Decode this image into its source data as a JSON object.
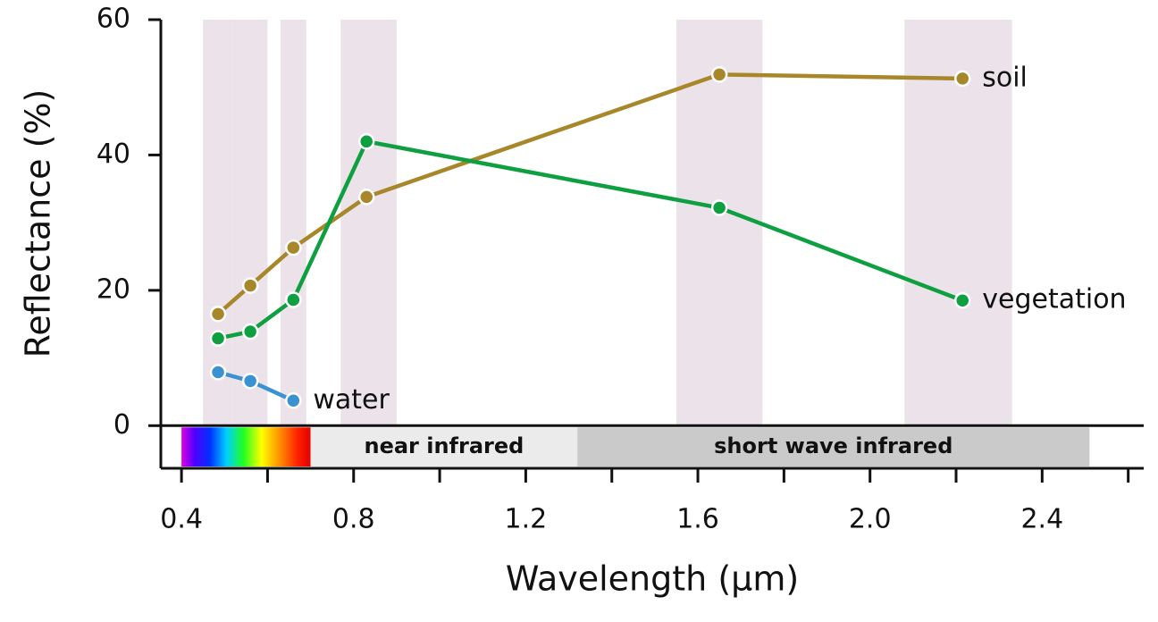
{
  "chart_data": {
    "type": "line",
    "xlabel": "Wavelength (µm)",
    "ylabel": "Reflectance (%)",
    "xlim": [
      0.352,
      2.636
    ],
    "ylim": [
      -6.3,
      60
    ],
    "xticks": [
      0.4,
      {
        "value": 0.8,
        "label": "0.8"
      },
      1.2,
      1.6,
      {
        "value": 2,
        "label": "2.0"
      },
      2.4
    ],
    "xminor_ticks": [
      0.6,
      1.0,
      1.4,
      1.8,
      2.2,
      2.6
    ],
    "yticks": [
      0,
      20,
      40,
      60
    ],
    "bands": [
      [
        0.45,
        0.52
      ],
      [
        0.52,
        0.6
      ],
      [
        0.63,
        0.69
      ],
      [
        0.77,
        0.9
      ],
      [
        1.55,
        1.75
      ],
      [
        2.08,
        2.33
      ]
    ],
    "band_color": "#ece3ea",
    "visible_range": [
      0.4,
      0.7
    ],
    "regions": [
      {
        "label": "near infrared",
        "range": [
          0.7,
          1.32
        ],
        "color": "#ebebeb"
      },
      {
        "label": "short wave infrared",
        "range": [
          1.32,
          2.51
        ],
        "color": "#c9cac9"
      }
    ],
    "series": [
      {
        "name": "soil",
        "color": "#a8862a",
        "x": [
          0.485,
          0.56,
          0.66,
          0.83,
          1.65,
          2.215
        ],
        "values": [
          16.5,
          20.7,
          26.3,
          33.8,
          51.9,
          51.3
        ]
      },
      {
        "name": "vegetation",
        "color": "#0d9f40",
        "x": [
          0.485,
          0.56,
          0.66,
          0.83,
          1.65,
          2.215
        ],
        "values": [
          12.9,
          13.9,
          18.6,
          42,
          32.2,
          18.5
        ]
      },
      {
        "name": "water",
        "color": "#3a93d0",
        "x": [
          0.485,
          0.56,
          0.66
        ],
        "values": [
          7.9,
          6.6,
          3.7
        ]
      }
    ]
  }
}
